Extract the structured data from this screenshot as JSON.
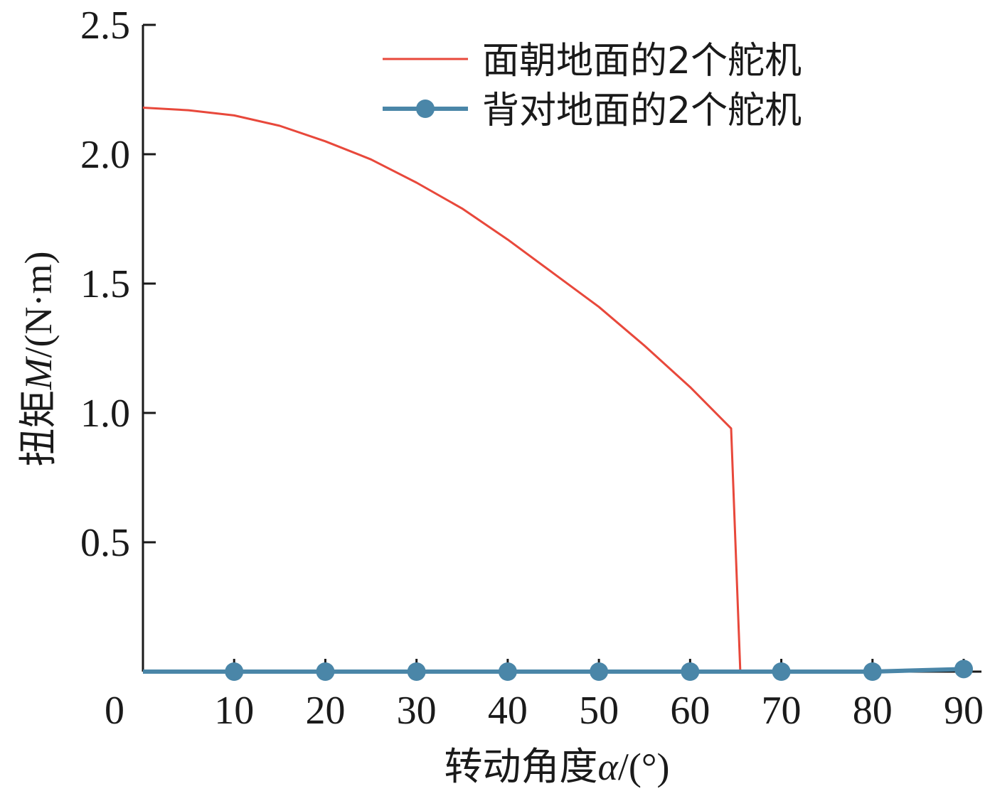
{
  "chart_data": {
    "type": "line",
    "xlabel": {
      "prefix": "转动角度",
      "symbol": "α",
      "suffix": "/(°)"
    },
    "ylabel": {
      "prefix": "扭矩",
      "symbol": "M",
      "suffix": "/(N·m)"
    },
    "xlim": [
      0,
      90
    ],
    "ylim": [
      0,
      2.5
    ],
    "x_ticks": [
      0,
      10,
      20,
      30,
      40,
      50,
      60,
      70,
      80,
      90
    ],
    "x_tick_labels": [
      "0",
      "10",
      "20",
      "30",
      "40",
      "50",
      "60",
      "70",
      "80",
      "90"
    ],
    "y_ticks": [
      0.5,
      1.0,
      1.5,
      2.0,
      2.5
    ],
    "y_tick_labels": [
      "0.5",
      "1.0",
      "1.5",
      "2.0",
      "2.5"
    ],
    "grid": false,
    "legend_position": "top-right",
    "series": [
      {
        "name": "面朝地面的2个舵机",
        "color": "#e8483b",
        "marker": "none",
        "x": [
          0,
          5,
          10,
          15,
          20,
          25,
          30,
          35,
          40,
          45,
          50,
          55,
          60,
          64.5,
          65.5
        ],
        "y": [
          2.18,
          2.17,
          2.15,
          2.11,
          2.05,
          1.98,
          1.89,
          1.79,
          1.67,
          1.54,
          1.41,
          1.26,
          1.1,
          0.94,
          0.0
        ]
      },
      {
        "name": "背对地面的2个舵机",
        "color": "#4a86a8",
        "marker": "circle",
        "x": [
          0,
          10,
          20,
          30,
          40,
          50,
          60,
          70,
          80,
          90
        ],
        "y": [
          0.0,
          0.0,
          0.0,
          0.0,
          0.0,
          0.0,
          0.0,
          0.0,
          0.0,
          0.01
        ],
        "marker_x": [
          10,
          20,
          30,
          40,
          50,
          60,
          70,
          80,
          90
        ]
      }
    ]
  }
}
